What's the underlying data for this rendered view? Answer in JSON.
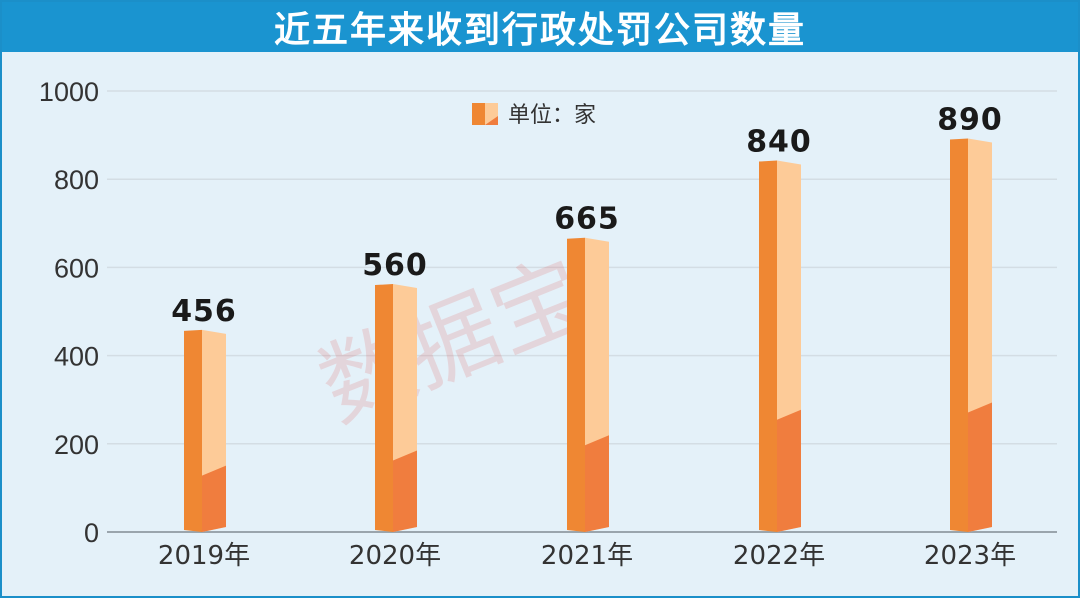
{
  "title": "近五年来收到行政处罚公司数量",
  "watermark": "数据宝",
  "colors": {
    "header": "#1a94d0",
    "bar_front": "#ef8733",
    "bar_side_light": "#fdcb98",
    "bar_side_dark": "#f07d3e",
    "gridline": "#d3dde4",
    "axis": "#9aa5ad"
  },
  "chart_data": {
    "type": "bar",
    "categories": [
      "2019年",
      "2020年",
      "2021年",
      "2022年",
      "2023年"
    ],
    "values": [
      456,
      560,
      665,
      840,
      890
    ],
    "data_labels": [
      "456",
      "560",
      "665",
      "840",
      "890"
    ],
    "ylim": [
      0,
      1000
    ],
    "yticks": [
      "0",
      "200",
      "400",
      "600",
      "800",
      "1000"
    ],
    "legend": "单位：家",
    "legend_position": "top-center",
    "grid": true,
    "xlabel": "",
    "ylabel": ""
  }
}
